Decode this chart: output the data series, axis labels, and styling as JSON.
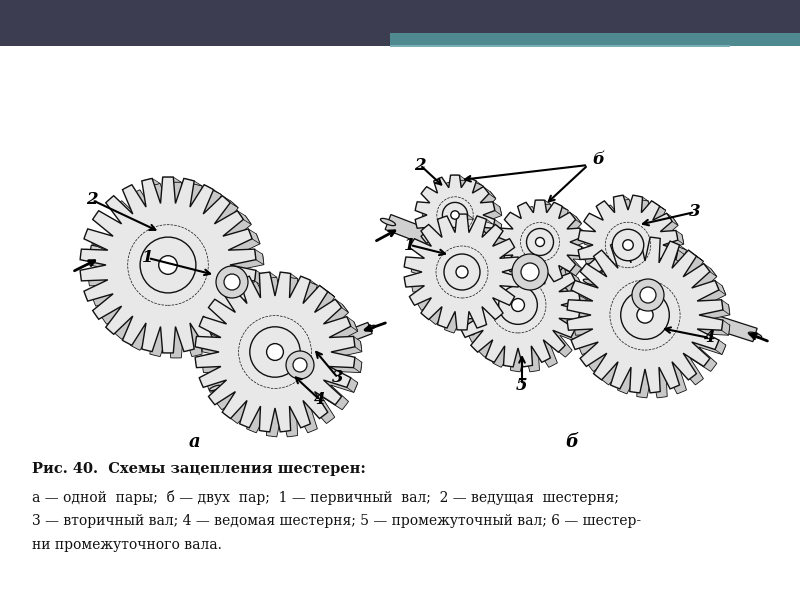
{
  "slide_bg": "#f0f0f2",
  "header_dark": "#3d3d52",
  "header_teal": "#4e8a90",
  "header_teal_light": "#7ab0b5",
  "content_bg": "#ffffff",
  "gear_fill": "#e8e8e8",
  "gear_fill_white": "#f8f8f8",
  "gear_edge": "#1a1a1a",
  "shaft_fill": "#c0c0c0",
  "shaft_edge": "#333333",
  "text_color": "#111111",
  "caption_bold": "Рис. 40.  Схемы зацепления шестерен:",
  "caption_line1": "а — одной  пары;  б — двух  пар;  1 — первичный  вал;  2 — ведущая  шестерня;",
  "caption_line2": "3 — вторичный вал; 4 — ведомая шестерня; 5 — промежуточный вал; 6 — шестер-",
  "caption_line3": "ни промежуточного вала.",
  "label_a": "а",
  "label_b": "б"
}
